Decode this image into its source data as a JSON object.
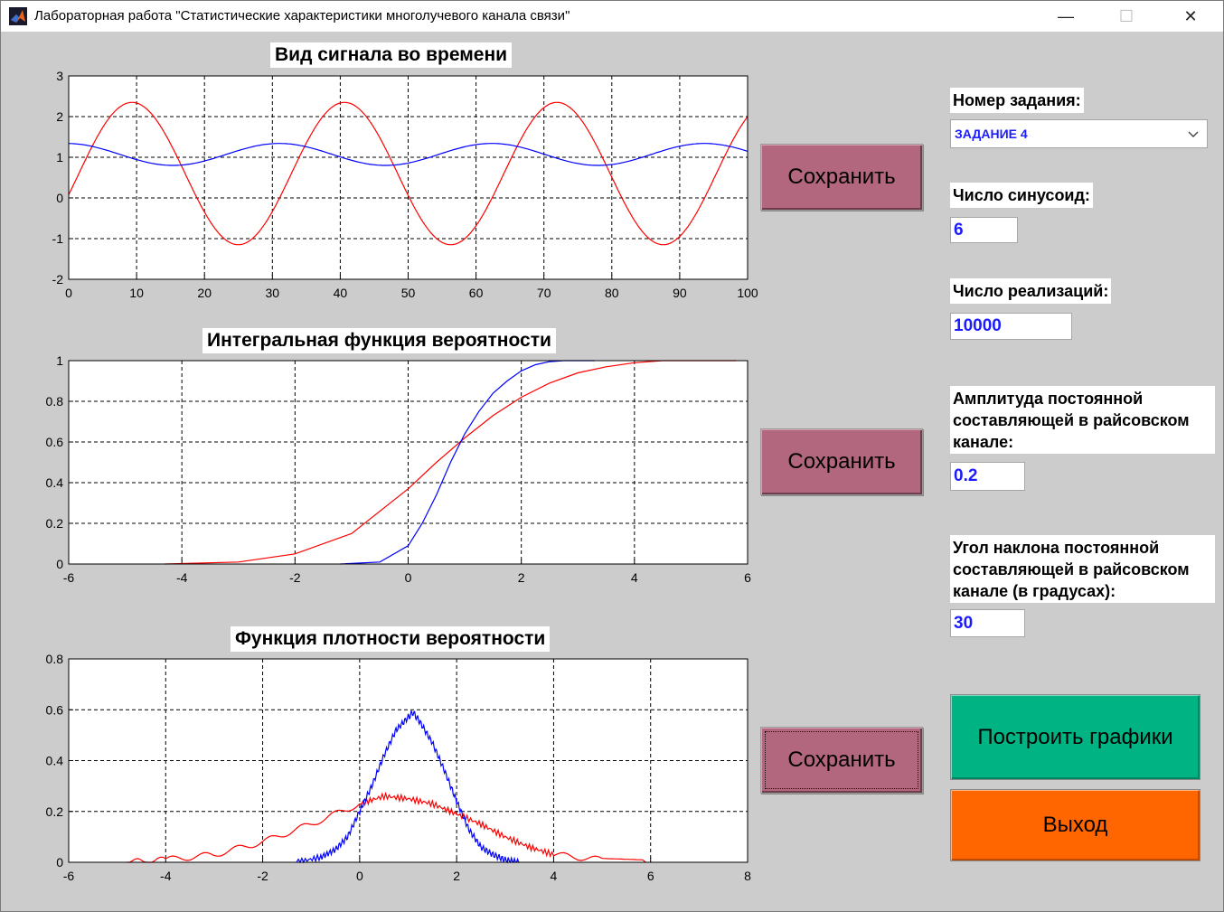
{
  "window": {
    "title": "Лабораторная работа \"Статистические характеристики многолучевого канала связи\"",
    "minimize_glyph": "—",
    "maximize_glyph": "☐",
    "close_glyph": "✕"
  },
  "plots": [
    {
      "title": "Вид сигнала во времени",
      "x_ticks": [
        "0",
        "10",
        "20",
        "30",
        "40",
        "50",
        "60",
        "70",
        "80",
        "90",
        "100"
      ],
      "y_ticks": [
        "3",
        "2",
        "1",
        "0",
        "-1",
        "-2"
      ]
    },
    {
      "title": "Интегральная функция вероятности",
      "x_ticks": [
        "-6",
        "-4",
        "-2",
        "0",
        "2",
        "4",
        "6"
      ],
      "y_ticks": [
        "1",
        "0.8",
        "0.6",
        "0.4",
        "0.2",
        "0"
      ]
    },
    {
      "title": "Функция плотности вероятности",
      "x_ticks": [
        "-6",
        "-4",
        "-2",
        "0",
        "2",
        "4",
        "6",
        "8"
      ],
      "y_ticks": [
        "0.8",
        "0.6",
        "0.4",
        "0.2",
        "0"
      ]
    }
  ],
  "chart_data": [
    {
      "type": "line",
      "title": "Вид сигнала во времени",
      "xlim": [
        0,
        100
      ],
      "ylim": [
        -2,
        3
      ],
      "grid": true,
      "series": [
        {
          "color": "#ff0000",
          "function": "0.6 + 1.75*sin(2*pi*(x-1.5)/31.3)",
          "x_range": [
            0,
            100
          ]
        },
        {
          "color": "#0000ff",
          "function": "1.07 + 0.27*sin(2*pi*(x-23.2)/31.3)",
          "x_range": [
            0,
            100
          ]
        }
      ]
    },
    {
      "type": "line",
      "title": "Интегральная функция вероятности",
      "xlim": [
        -6,
        6
      ],
      "ylim": [
        0,
        1
      ],
      "grid": true,
      "series": [
        {
          "color": "#ff0000",
          "x": [
            -4.3,
            -3,
            -2,
            -1,
            0,
            0.5,
            1,
            1.5,
            2,
            2.5,
            3,
            3.5,
            4,
            4.5,
            5.8
          ],
          "y": [
            0,
            0.01,
            0.05,
            0.15,
            0.37,
            0.5,
            0.62,
            0.73,
            0.82,
            0.89,
            0.94,
            0.97,
            0.99,
            1,
            1
          ]
        },
        {
          "color": "#0000ff",
          "x": [
            -1.2,
            -0.5,
            0,
            0.25,
            0.5,
            0.75,
            1,
            1.25,
            1.5,
            1.75,
            2,
            2.25,
            2.5,
            2.75,
            3,
            3.3
          ],
          "y": [
            0,
            0.01,
            0.09,
            0.2,
            0.34,
            0.5,
            0.64,
            0.75,
            0.84,
            0.9,
            0.95,
            0.98,
            0.995,
            1,
            1,
            1
          ]
        }
      ]
    },
    {
      "type": "line",
      "title": "Функция плотности вероятности",
      "xlim": [
        -6,
        8
      ],
      "ylim": [
        0,
        0.8
      ],
      "grid": true,
      "series": [
        {
          "color": "#ff0000",
          "x": [
            -4.8,
            -4,
            -3,
            -2,
            -1,
            0,
            0.5,
            1,
            1.5,
            2,
            2.5,
            3,
            3.5,
            4,
            5,
            5.9
          ],
          "y": [
            0,
            0.01,
            0.03,
            0.08,
            0.15,
            0.23,
            0.26,
            0.25,
            0.23,
            0.19,
            0.15,
            0.1,
            0.06,
            0.03,
            0.01,
            0
          ]
        },
        {
          "color": "#0000ff",
          "x": [
            -1.3,
            -0.8,
            -0.5,
            -0.25,
            0,
            0.25,
            0.5,
            0.75,
            1,
            1.1,
            1.25,
            1.5,
            1.75,
            2,
            2.25,
            2.5,
            2.75,
            3,
            3.3
          ],
          "y": [
            0,
            0.02,
            0.05,
            0.1,
            0.2,
            0.3,
            0.42,
            0.52,
            0.57,
            0.59,
            0.55,
            0.47,
            0.36,
            0.24,
            0.13,
            0.06,
            0.03,
            0.01,
            0
          ]
        }
      ]
    }
  ],
  "save_label": "Сохранить",
  "controls": {
    "task_label": "Номер задания:",
    "task_value": "ЗАДАНИЕ 4",
    "sin_count_label": "Число синусоид:",
    "sin_count_value": "6",
    "realizations_label": "Число реализаций:",
    "realizations_value": "10000",
    "amplitude_label": "Амплитуда постоянной составляющей в райсовском канале:",
    "amplitude_value": "0.2",
    "angle_label": "Угол наклона постоянной составляющей в райсовском канале (в градусах):",
    "angle_value": "30",
    "build_label": "Построить графики",
    "exit_label": "Выход"
  },
  "colors": {
    "save_button": "#b2677e",
    "build_button": "#00b383",
    "exit_button": "#ff6600",
    "field_text": "#1c1cff"
  },
  "icons": {
    "app": "matlab-icon",
    "dropdown": "chevron-down-icon"
  }
}
